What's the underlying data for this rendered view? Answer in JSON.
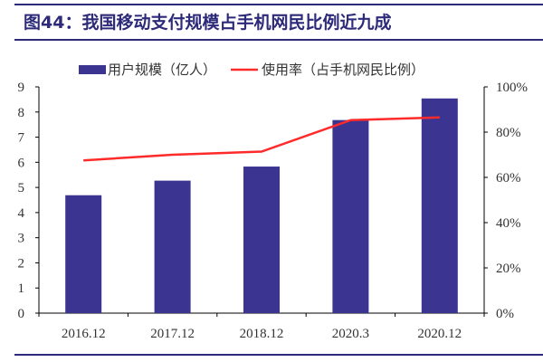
{
  "chart_data": {
    "type": "bar",
    "title": "图44：我国移动支付规模占手机网民比例近九成",
    "categories": [
      "2016.12",
      "2017.12",
      "2018.12",
      "2020.3",
      "2020.12"
    ],
    "series": [
      {
        "name": "用户规模（亿人）",
        "type": "bar",
        "axis": "left",
        "color": "#3b3490",
        "values": [
          4.69,
          5.27,
          5.83,
          7.68,
          8.54
        ]
      },
      {
        "name": "使用率（占手机网民比例）",
        "type": "line",
        "axis": "right",
        "color": "#ff2a2a",
        "values": [
          67.5,
          70.0,
          71.4,
          85.3,
          86.5
        ]
      }
    ],
    "y_left": {
      "ylim": [
        0,
        9
      ],
      "ticks": [
        "0",
        "1",
        "2",
        "3",
        "4",
        "5",
        "6",
        "7",
        "8",
        "9"
      ]
    },
    "y_right": {
      "ylim": [
        0,
        100
      ],
      "ticks": [
        "0%",
        "20%",
        "40%",
        "60%",
        "80%",
        "100%"
      ]
    },
    "legend": "top-center",
    "grid": false
  }
}
